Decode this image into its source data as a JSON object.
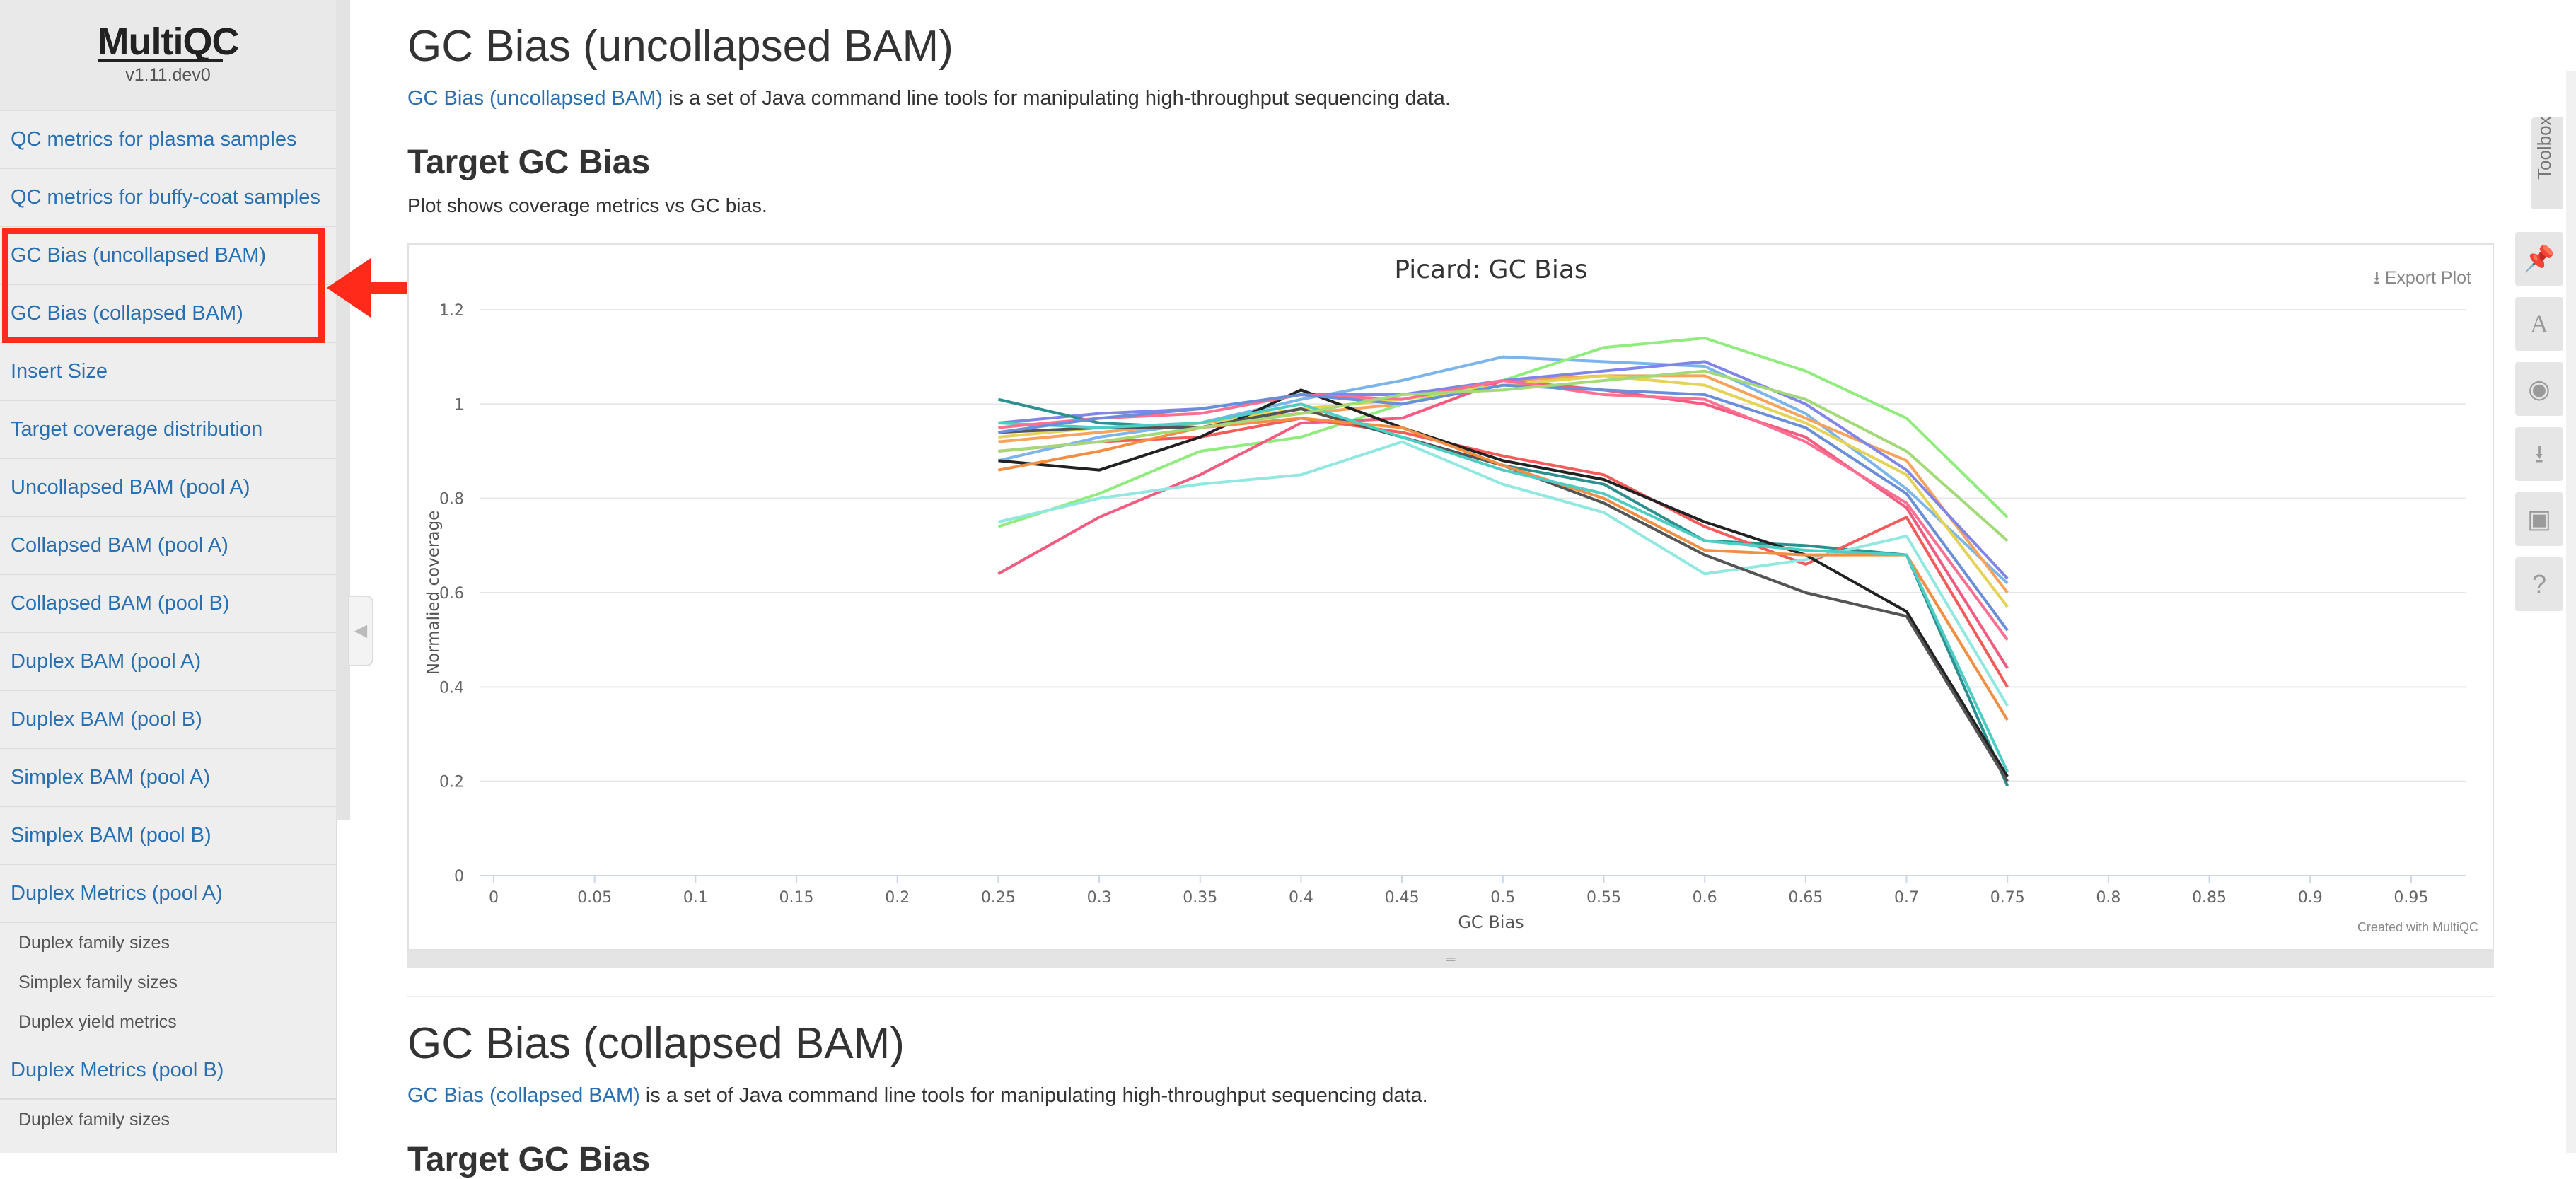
{
  "brand": {
    "name": "MultiQC",
    "version": "v1.11.dev0"
  },
  "sidebar": {
    "items": [
      {
        "label": "QC metrics for plasma samples",
        "type": "main"
      },
      {
        "label": "QC metrics for buffy-coat samples",
        "type": "main"
      },
      {
        "label": "GC Bias (uncollapsed BAM)",
        "type": "main"
      },
      {
        "label": "GC Bias (collapsed BAM)",
        "type": "main"
      },
      {
        "label": "Insert Size",
        "type": "main"
      },
      {
        "label": "Target coverage distribution",
        "type": "main"
      },
      {
        "label": "Uncollapsed BAM (pool A)",
        "type": "main"
      },
      {
        "label": "Collapsed BAM (pool A)",
        "type": "main"
      },
      {
        "label": "Collapsed BAM (pool B)",
        "type": "main"
      },
      {
        "label": "Duplex BAM (pool A)",
        "type": "main"
      },
      {
        "label": "Duplex BAM (pool B)",
        "type": "main"
      },
      {
        "label": "Simplex BAM (pool A)",
        "type": "main"
      },
      {
        "label": "Simplex BAM (pool B)",
        "type": "main"
      },
      {
        "label": "Duplex Metrics (pool A)",
        "type": "main"
      },
      {
        "label": "Duplex family sizes",
        "type": "sub"
      },
      {
        "label": "Simplex family sizes",
        "type": "sub"
      },
      {
        "label": "Duplex yield metrics",
        "type": "sub"
      },
      {
        "label": "Duplex Metrics (pool B)",
        "type": "main"
      },
      {
        "label": "Duplex family sizes",
        "type": "sub"
      }
    ]
  },
  "section1": {
    "title": "GC Bias (uncollapsed BAM)",
    "link_text": "GC Bias (uncollapsed BAM)",
    "desc_rest": " is a set of Java command line tools for manipulating high-throughput sequencing data.",
    "subtitle": "Target GC Bias",
    "plot_desc": "Plot shows coverage metrics vs GC bias."
  },
  "plot": {
    "export_label": "Export Plot",
    "credit": "Created with MultiQC"
  },
  "section2": {
    "title": "GC Bias (collapsed BAM)",
    "link_text": "GC Bias (collapsed BAM)",
    "desc_rest": " is a set of Java command line tools for manipulating high-throughput sequencing data.",
    "subtitle": "Target GC Bias"
  },
  "toolbox": {
    "label": "Toolbox",
    "buttons": [
      "pin-icon",
      "font-icon",
      "hide-icon",
      "download-icon",
      "save-icon",
      "help-icon"
    ]
  },
  "chart_data": {
    "type": "line",
    "title": "Picard: GC Bias",
    "xlabel": "GC Bias",
    "ylabel": "Normalied coverage",
    "xlim": [
      0,
      0.97
    ],
    "ylim": [
      0,
      1.2
    ],
    "xticks": [
      0,
      0.05,
      0.1,
      0.15,
      0.2,
      0.25,
      0.3,
      0.35,
      0.4,
      0.45,
      0.5,
      0.55,
      0.6,
      0.65,
      0.7,
      0.75,
      0.8,
      0.85,
      0.9,
      0.95
    ],
    "yticks": [
      0,
      0.2,
      0.4,
      0.6,
      0.8,
      1,
      1.2
    ],
    "x": [
      0.25,
      0.3,
      0.35,
      0.4,
      0.45,
      0.5,
      0.55,
      0.6,
      0.65,
      0.7,
      0.75
    ],
    "grid": true,
    "series": [
      {
        "color": "#7cb5ec",
        "values": [
          0.88,
          0.93,
          0.96,
          1.01,
          1.05,
          1.1,
          1.09,
          1.08,
          0.98,
          0.82,
          0.62
        ]
      },
      {
        "color": "#f7a35c",
        "values": [
          0.92,
          0.94,
          0.96,
          0.98,
          1.0,
          1.05,
          1.06,
          1.06,
          0.97,
          0.88,
          0.6
        ]
      },
      {
        "color": "#90ed7d",
        "values": [
          0.74,
          0.81,
          0.9,
          0.93,
          1.0,
          1.05,
          1.12,
          1.14,
          1.07,
          0.97,
          0.76
        ]
      },
      {
        "color": "#8085e9",
        "values": [
          0.96,
          0.98,
          0.99,
          1.02,
          1.02,
          1.05,
          1.07,
          1.09,
          1.0,
          0.86,
          0.63
        ]
      },
      {
        "color": "#f15c80",
        "values": [
          0.64,
          0.76,
          0.85,
          0.96,
          0.97,
          1.05,
          1.03,
          1.0,
          0.93,
          0.78,
          0.44
        ]
      },
      {
        "color": "#e4d354",
        "values": [
          0.93,
          0.95,
          0.96,
          0.99,
          1.01,
          1.04,
          1.06,
          1.04,
          0.96,
          0.85,
          0.57
        ]
      },
      {
        "color": "#2b908f",
        "values": [
          1.01,
          0.96,
          0.95,
          0.99,
          0.93,
          0.87,
          0.83,
          0.71,
          0.7,
          0.68,
          0.19
        ]
      },
      {
        "color": "#f45b5b",
        "values": [
          0.9,
          0.92,
          0.93,
          0.97,
          0.94,
          0.89,
          0.85,
          0.74,
          0.66,
          0.76,
          0.4
        ]
      },
      {
        "color": "#91e8e1",
        "values": [
          0.75,
          0.8,
          0.83,
          0.85,
          0.92,
          0.83,
          0.77,
          0.64,
          0.67,
          0.72,
          0.36
        ]
      },
      {
        "color": "#222222",
        "values": [
          0.88,
          0.86,
          0.93,
          1.03,
          0.95,
          0.88,
          0.84,
          0.75,
          0.68,
          0.56,
          0.21
        ]
      },
      {
        "color": "#555555",
        "values": [
          0.94,
          0.95,
          0.95,
          0.99,
          0.93,
          0.87,
          0.79,
          0.68,
          0.6,
          0.55,
          0.2
        ]
      },
      {
        "color": "#f28f43",
        "values": [
          0.86,
          0.9,
          0.95,
          0.97,
          0.95,
          0.87,
          0.8,
          0.69,
          0.68,
          0.68,
          0.33
        ]
      },
      {
        "color": "#4ecdc4",
        "values": [
          0.96,
          0.95,
          0.96,
          1.0,
          0.93,
          0.86,
          0.81,
          0.71,
          0.69,
          0.68,
          0.22
        ]
      },
      {
        "color": "#ff6f91",
        "values": [
          0.95,
          0.97,
          0.98,
          1.02,
          1.01,
          1.05,
          1.02,
          1.01,
          0.92,
          0.79,
          0.5
        ]
      },
      {
        "color": "#6a8fd8",
        "values": [
          0.94,
          0.97,
          0.99,
          1.02,
          1.0,
          1.04,
          1.03,
          1.02,
          0.95,
          0.81,
          0.52
        ]
      },
      {
        "color": "#a3d977",
        "values": [
          0.9,
          0.92,
          0.95,
          0.98,
          1.02,
          1.03,
          1.05,
          1.07,
          1.01,
          0.9,
          0.71
        ]
      }
    ]
  }
}
